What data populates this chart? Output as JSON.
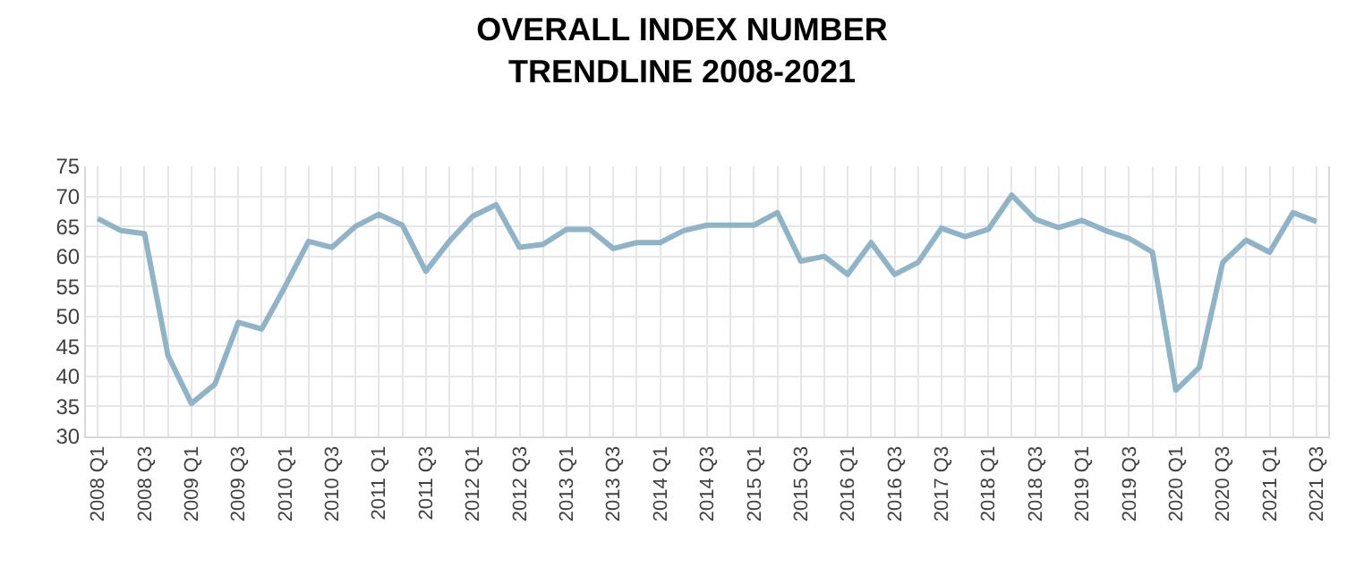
{
  "chart_data": {
    "type": "line",
    "title": "OVERALL INDEX NUMBER\nTRENDLINE 2008-2021",
    "categories": [
      "2008 Q1",
      null,
      "2008 Q3",
      null,
      "2009 Q1",
      null,
      "2009 Q3",
      null,
      "2010 Q1",
      null,
      "2010 Q3",
      null,
      "2011 Q1",
      null,
      "2011 Q3",
      null,
      "2012 Q1",
      null,
      "2012 Q3",
      null,
      "2013 Q1",
      null,
      "2013 Q3",
      null,
      "2014 Q1",
      null,
      "2014 Q3",
      null,
      "2015 Q1",
      null,
      "2015 Q3",
      null,
      "2016 Q1",
      null,
      "2016 Q3",
      null,
      "2017 Q3",
      null,
      "2018 Q1",
      null,
      "2018 Q3",
      null,
      "2019 Q1",
      null,
      "2019 Q3",
      null,
      "2020 Q1",
      null,
      "2020 Q3",
      null,
      "2021 Q1",
      null,
      "2021 Q3"
    ],
    "series": [
      {
        "color": "#8fb4c8",
        "values": [
          66.3,
          64.3,
          63.8,
          43.5,
          35.5,
          38.7,
          49,
          47.9,
          55,
          62.5,
          61.5,
          65,
          67,
          65.2,
          57.5,
          62.5,
          66.7,
          68.6,
          61.5,
          62,
          64.5,
          64.5,
          61.3,
          62.3,
          62.3,
          64.3,
          65.2,
          65.2,
          65.2,
          67.3,
          59.2,
          60,
          57,
          62.3,
          57,
          59,
          64.7,
          63.3,
          64.5,
          70.2,
          66.2,
          64.8,
          66,
          64.3,
          63,
          60.7,
          37.7,
          41.5,
          59,
          62.7,
          60.7,
          67.3,
          65.8
        ]
      }
    ],
    "ylim": [
      30,
      75
    ],
    "yticks": [
      30,
      35,
      40,
      45,
      50,
      55,
      60,
      65,
      70,
      75
    ],
    "grid": true,
    "marker": "none",
    "line_style": "solid"
  }
}
